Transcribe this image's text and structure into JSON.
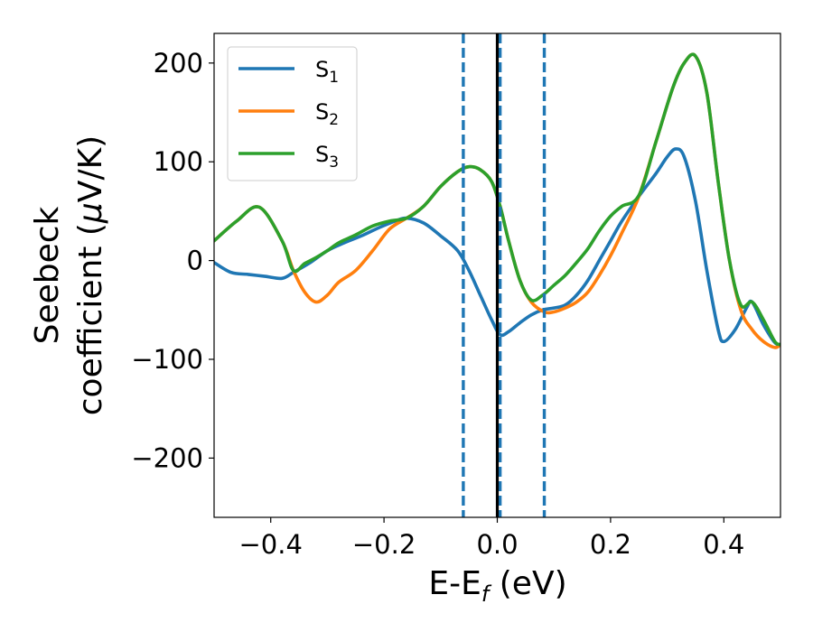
{
  "chart_data": {
    "type": "line",
    "xlabel": "E-E",
    "xlabel_sub": "f",
    "xlabel_unit": " (eV)",
    "ylabel_line1": "Seebeck",
    "ylabel_line2": "coefficient  (",
    "ylabel_mu": "μ",
    "ylabel_unit": "V/K)",
    "xlim": [
      -0.5,
      0.5
    ],
    "ylim": [
      -260,
      230
    ],
    "xticks": [
      -0.4,
      -0.2,
      0.0,
      0.2,
      0.4
    ],
    "xtick_labels": [
      "−0.4",
      "−0.2",
      "0.0",
      "0.2",
      "0.4"
    ],
    "yticks": [
      -200,
      -100,
      0,
      100,
      200
    ],
    "ytick_labels": [
      "−200",
      "−100",
      "0",
      "100",
      "200"
    ],
    "legend_position": "upper-left",
    "vlines": [
      {
        "x": -0.06,
        "style": "dashed",
        "color": "#1f77b4"
      },
      {
        "x": 0.005,
        "style": "dashed",
        "color": "#1f77b4"
      },
      {
        "x": 0.083,
        "style": "dashed",
        "color": "#1f77b4"
      },
      {
        "x": 0.0,
        "style": "solid",
        "color": "#000000"
      }
    ],
    "series": [
      {
        "name": "S",
        "sub": "1",
        "color": "#1f77b4",
        "x": [
          -0.5,
          -0.47,
          -0.44,
          -0.41,
          -0.38,
          -0.36,
          -0.33,
          -0.3,
          -0.27,
          -0.24,
          -0.21,
          -0.18,
          -0.16,
          -0.13,
          -0.1,
          -0.07,
          -0.05,
          -0.03,
          -0.01,
          0.005,
          0.02,
          0.04,
          0.06,
          0.08,
          0.1,
          0.12,
          0.14,
          0.16,
          0.18,
          0.2,
          0.22,
          0.25,
          0.28,
          0.3,
          0.315,
          0.33,
          0.35,
          0.37,
          0.39,
          0.4,
          0.42,
          0.44,
          0.45,
          0.47,
          0.49,
          0.5
        ],
        "values": [
          -2,
          -12,
          -14,
          -16,
          -18,
          -12,
          -2,
          10,
          18,
          25,
          33,
          40,
          43,
          38,
          25,
          10,
          -10,
          -35,
          -60,
          -75,
          -72,
          -63,
          -55,
          -50,
          -48,
          -45,
          -35,
          -20,
          0,
          20,
          40,
          65,
          88,
          105,
          113,
          105,
          60,
          -10,
          -70,
          -82,
          -70,
          -48,
          -42,
          -65,
          -83,
          -85
        ]
      },
      {
        "name": "S",
        "sub": "2",
        "color": "#ff7f0e",
        "x": [
          -0.5,
          -0.46,
          -0.42,
          -0.38,
          -0.36,
          -0.34,
          -0.32,
          -0.3,
          -0.28,
          -0.25,
          -0.22,
          -0.19,
          -0.16,
          -0.13,
          -0.1,
          -0.07,
          -0.05,
          -0.03,
          -0.01,
          0.005,
          0.02,
          0.04,
          0.06,
          0.083,
          0.1,
          0.12,
          0.14,
          0.16,
          0.18,
          0.2,
          0.22,
          0.25,
          0.28,
          0.31,
          0.33,
          0.35,
          0.37,
          0.39,
          0.41,
          0.43,
          0.45,
          0.47,
          0.49,
          0.5
        ],
        "values": [
          20,
          40,
          54,
          20,
          -10,
          -32,
          -42,
          -35,
          -22,
          -10,
          10,
          32,
          43,
          55,
          75,
          90,
          95,
          92,
          80,
          55,
          20,
          -20,
          -42,
          -52,
          -52,
          -48,
          -42,
          -32,
          -15,
          5,
          28,
          65,
          120,
          175,
          200,
          207,
          170,
          80,
          0,
          -50,
          -70,
          -82,
          -88,
          -85
        ]
      },
      {
        "name": "S",
        "sub": "3",
        "color": "#2ca02c",
        "x": [
          -0.5,
          -0.46,
          -0.42,
          -0.38,
          -0.36,
          -0.34,
          -0.32,
          -0.3,
          -0.28,
          -0.25,
          -0.22,
          -0.19,
          -0.16,
          -0.13,
          -0.1,
          -0.07,
          -0.05,
          -0.03,
          -0.01,
          0.005,
          0.02,
          0.04,
          0.06,
          0.08,
          0.1,
          0.12,
          0.14,
          0.16,
          0.18,
          0.2,
          0.22,
          0.25,
          0.28,
          0.31,
          0.33,
          0.35,
          0.37,
          0.39,
          0.41,
          0.43,
          0.45,
          0.47,
          0.49,
          0.5
        ],
        "values": [
          20,
          40,
          54,
          20,
          -10,
          -3,
          3,
          10,
          18,
          26,
          35,
          40,
          43,
          55,
          75,
          90,
          95,
          92,
          80,
          55,
          20,
          -20,
          -40,
          -35,
          -25,
          -15,
          -2,
          12,
          30,
          45,
          55,
          66,
          120,
          175,
          200,
          207,
          170,
          80,
          0,
          -45,
          -42,
          -60,
          -82,
          -85
        ]
      }
    ]
  }
}
